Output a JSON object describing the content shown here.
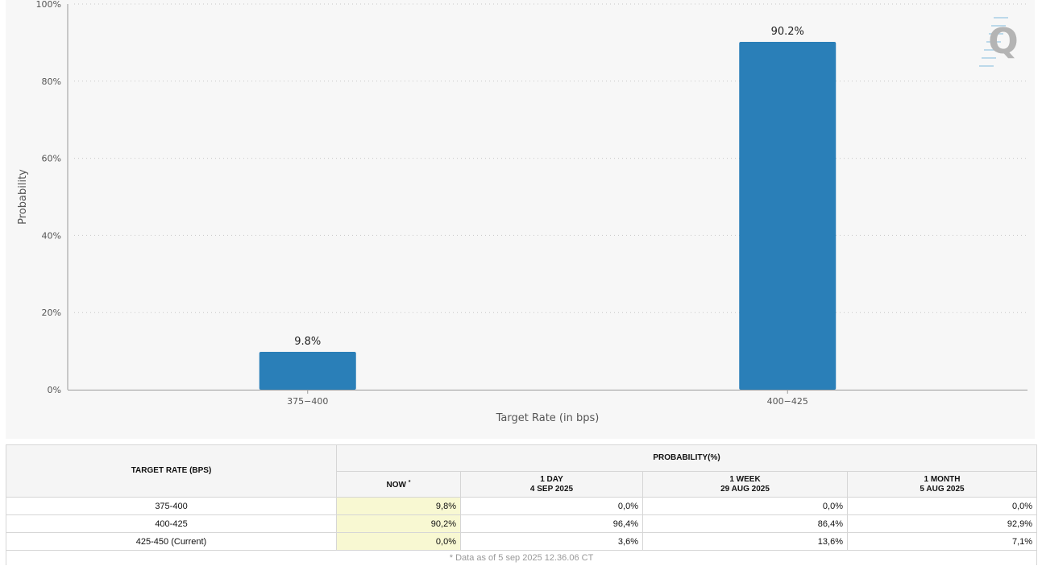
{
  "chart_data": {
    "type": "bar",
    "categories": [
      "375-400",
      "400-425"
    ],
    "values": [
      9.8,
      90.2
    ],
    "data_labels": [
      "9.8%",
      "90.2%"
    ],
    "xlabel": "Target Rate (in bps)",
    "ylabel": "Probability",
    "ylim": [
      0,
      100
    ],
    "yticks": [
      "0%",
      "20%",
      "40%",
      "60%",
      "80%",
      "100%"
    ],
    "grid": true,
    "bar_color": "#2a7fb8",
    "logo": "Q"
  },
  "table": {
    "target_rate_header": "TARGET RATE (BPS)",
    "probability_header": "PROBABILITY(%)",
    "columns": [
      {
        "label": "NOW",
        "sub": "",
        "mark": "*"
      },
      {
        "label": "1 DAY",
        "sub": "4 SEP 2025",
        "mark": ""
      },
      {
        "label": "1 WEEK",
        "sub": "29 AUG 2025",
        "mark": ""
      },
      {
        "label": "1 MONTH",
        "sub": "5 AUG 2025",
        "mark": ""
      }
    ],
    "rows": [
      {
        "rate": "375-400",
        "values": [
          "9,8%",
          "0,0%",
          "0,0%",
          "0,0%"
        ]
      },
      {
        "rate": "400-425",
        "values": [
          "90,2%",
          "96,4%",
          "86,4%",
          "92,9%"
        ]
      },
      {
        "rate": "425-450 (Current)",
        "values": [
          "0,0%",
          "3,6%",
          "13,6%",
          "7,1%"
        ]
      }
    ],
    "footnote": "* Data as of 5 sep 2025 12.36.06 CT",
    "now_highlight_color": "#f8f8d2"
  }
}
